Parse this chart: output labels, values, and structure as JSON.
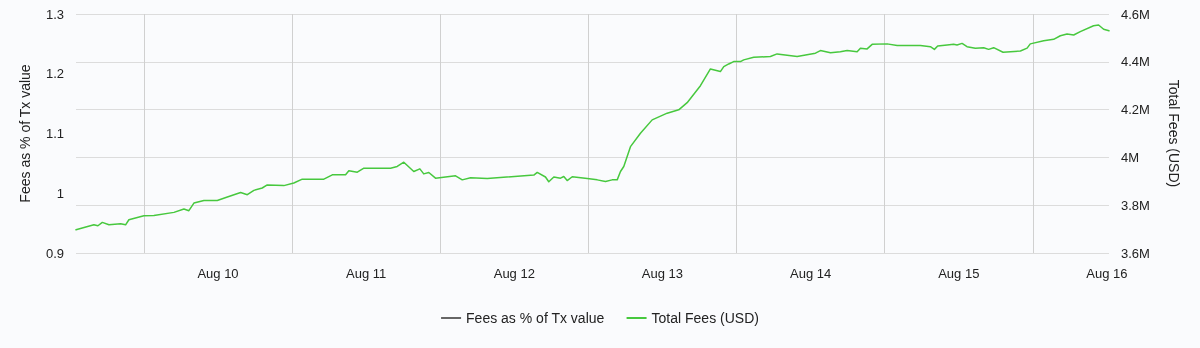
{
  "chart_data": {
    "type": "line",
    "ylabel": "Fees as % of Tx value",
    "y2label": "Total Fees (USD)",
    "xlim": [
      "--08-09T01:00",
      "--08-16T00:20"
    ],
    "xticks": [
      {
        "value": "--08-09T12:00",
        "label": null
      },
      {
        "value": "--08-10",
        "label": "Aug 10"
      },
      {
        "value": "--08-10T12:00",
        "label": null
      },
      {
        "value": "--08-11",
        "label": "Aug 11"
      },
      {
        "value": "--08-11T12:00",
        "label": null
      },
      {
        "value": "--08-12",
        "label": "Aug 12"
      },
      {
        "value": "--08-12T12:00",
        "label": null
      },
      {
        "value": "--08-13",
        "label": "Aug 13"
      },
      {
        "value": "--08-13T12:00",
        "label": null
      },
      {
        "value": "--08-14",
        "label": "Aug 14"
      },
      {
        "value": "--08-14T12:00",
        "label": null
      },
      {
        "value": "--08-15",
        "label": "Aug 15"
      },
      {
        "value": "--08-15T12:00",
        "label": null
      },
      {
        "value": "--08-16",
        "label": "Aug 16"
      }
    ],
    "ylim": [
      0.9,
      1.3
    ],
    "yticks": [
      0.9,
      1,
      1.1,
      1.2,
      1.3
    ],
    "y2lim": [
      3600000,
      4600000
    ],
    "y2ticks": [
      {
        "value": 3600000,
        "label": "3.6M"
      },
      {
        "value": 3800000,
        "label": "3.8M"
      },
      {
        "value": 4000000,
        "label": "4M"
      },
      {
        "value": 4200000,
        "label": "4.2M"
      },
      {
        "value": 4400000,
        "label": "4.4M"
      },
      {
        "value": 4600000,
        "label": "4.6M"
      }
    ],
    "grid": true,
    "legend": "bottom",
    "marker": "none",
    "line_style": "solid",
    "series": [
      {
        "name": "Fees as % of Tx value",
        "color": "#666666",
        "axis": "y"
      },
      {
        "name": "Total Fees (USD)",
        "color": "#47c83e",
        "axis": "y2",
        "x": [
          "--08-09T01:00",
          "--08-09T03:54",
          "--08-09T04:33",
          "--08-09T05:16",
          "--08-09T06:20",
          "--08-09T08:14",
          "--08-09T09:02",
          "--08-09T09:34",
          "--08-09T12:00",
          "--08-09T13:37",
          "--08-09T16:52",
          "--08-09T18:29",
          "--08-09T19:17",
          "--08-09T20:06",
          "--08-09T21:43",
          "--08-09T23:53",
          "--08-10T01:31",
          "--08-10T03:40",
          "--08-10T04:45",
          "--08-10T05:49",
          "--08-10T07:10",
          "--08-10T07:59",
          "--08-10T10:40",
          "--08-10T12:17",
          "--08-10T13:39",
          "--08-10T17:09",
          "--08-10T18:31",
          "--08-10T20:40",
          "--08-10T21:12",
          "--08-10T22:34",
          "--08-10T23:38",
          "--08-11T03:57",
          "--08-11T05:02",
          "--08-11T06:06",
          "--08-11T07:43",
          "--08-11T08:42",
          "--08-11T09:20",
          "--08-11T10:09",
          "--08-11T11:14",
          "--08-11T14:29",
          "--08-11T15:34",
          "--08-11T16:55",
          "--08-11T19:37",
          "--08-12T03:10",
          "--08-12T03:43",
          "--08-12T05:03",
          "--08-12T05:35",
          "--08-12T06:24",
          "--08-12T07:29",
          "--08-12T08:01",
          "--08-12T08:34",
          "--08-12T09:23",
          "--08-12T11:49",
          "--08-12T13:26",
          "--08-12T14:46",
          "--08-12T15:51",
          "--08-12T16:40",
          "--08-12T17:12",
          "--08-12T17:44",
          "--08-12T18:49",
          "--08-12T20:26",
          "--08-12T22:20",
          "--08-13T00:46",
          "--08-13T02:38",
          "--08-13T04:00",
          "--08-13T06:09",
          "--08-13T07:46",
          "--08-13T09:23",
          "--08-13T09:56",
          "--08-13T10:44",
          "--08-13T11:32",
          "--08-13T12:38",
          "--08-13T13:10",
          "--08-13T14:47",
          "--08-13T17:29",
          "--08-13T18:34",
          "--08-13T21:49",
          "--08-14T00:47",
          "--08-14T01:35",
          "--08-14T03:13",
          "--08-14T04:49",
          "--08-14T05:55",
          "--08-14T07:32",
          "--08-14T08:04",
          "--08-14T09:09",
          "--08-14T09:58",
          "--08-14T12:23",
          "--08-14T14:01",
          "--08-14T17:47",
          "--08-14T19:24",
          "--08-14T20:03",
          "--08-14T20:35",
          "--08-14T22:07",
          "--08-14T23:10",
          "--08-14T23:43",
          "--08-15T00:32",
          "--08-15T01:20",
          "--08-15T02:41",
          "--08-15T04:02",
          "--08-15T04:50",
          "--08-15T05:39",
          "--08-15T07:10",
          "--08-15T09:59",
          "--08-15T11:04",
          "--08-15T11:35",
          "--08-15T13:45",
          "--08-15T15:22",
          "--08-15T16:27",
          "--08-15T17:32",
          "--08-15T18:37",
          "--08-15T19:41",
          "--08-15T21:50",
          "--08-15T22:39",
          "--08-15T23:28",
          "--08-16T00:20"
        ],
        "values": [
          3697000,
          3718000,
          3714000,
          3728000,
          3718000,
          3722000,
          3718000,
          3739000,
          3756000,
          3757000,
          3770000,
          3784000,
          3777000,
          3809000,
          3820000,
          3820000,
          3834000,
          3853000,
          3844000,
          3862000,
          3872000,
          3885000,
          3882000,
          3893000,
          3909000,
          3909000,
          3927000,
          3927000,
          3944000,
          3938000,
          3955000,
          3955000,
          3962000,
          3980000,
          3941000,
          3952000,
          3931000,
          3937000,
          3913000,
          3923000,
          3906000,
          3915000,
          3912000,
          3926000,
          3937000,
          3918000,
          3898000,
          3918000,
          3913000,
          3920000,
          3903000,
          3919000,
          3912000,
          3906000,
          3899000,
          3906000,
          3906000,
          3941000,
          3962000,
          4045000,
          4101000,
          4157000,
          4185000,
          4199000,
          4229000,
          4300000,
          4370000,
          4359000,
          4380000,
          4391000,
          4401000,
          4401000,
          4408000,
          4419000,
          4422000,
          4433000,
          4422000,
          4436000,
          4447000,
          4438000,
          4442000,
          4447000,
          4442000,
          4457000,
          4454000,
          4473000,
          4475000,
          4468000,
          4468000,
          4463000,
          4452000,
          4466000,
          4470000,
          4473000,
          4470000,
          4477000,
          4463000,
          4457000,
          4459000,
          4452000,
          4459000,
          4440000,
          4445000,
          4457000,
          4475000,
          4488000,
          4494000,
          4509000,
          4516000,
          4512000,
          4526000,
          4551000,
          4554000,
          4536000,
          4530000
        ]
      }
    ]
  }
}
